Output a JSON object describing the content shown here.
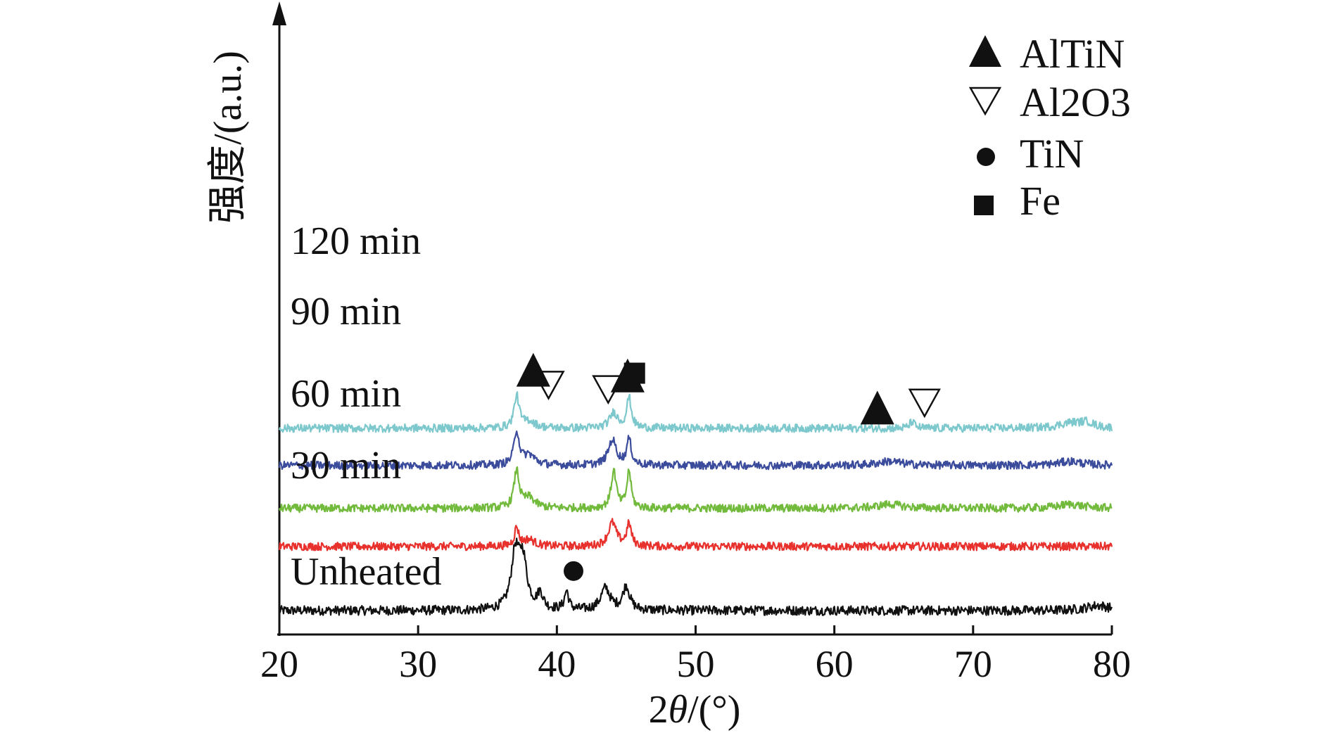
{
  "chart_data": {
    "type": "line",
    "title": "",
    "xlabel_prefix": "2",
    "xlabel_theta": "θ",
    "xlabel_suffix": "/(°)",
    "ylabel": "强度/(a.u.)",
    "xlim": [
      20,
      80
    ],
    "x_ticks": [
      20,
      30,
      40,
      50,
      60,
      70,
      80
    ],
    "x_tick_labels": [
      "20",
      "30",
      "40",
      "50",
      "60",
      "70",
      "80"
    ],
    "y_units": "a.u. (stacked offset, no ticks)",
    "series": [
      {
        "name": "Unheated",
        "color": "#111111",
        "baseline": 0.0,
        "noise": 0.014,
        "peaks": [
          {
            "x": 37.0,
            "h": 0.16,
            "w": 0.35
          },
          {
            "x": 37.55,
            "h": 0.14,
            "w": 0.35
          },
          {
            "x": 38.8,
            "h": 0.045,
            "w": 0.25
          },
          {
            "x": 40.7,
            "h": 0.055,
            "w": 0.18
          },
          {
            "x": 43.5,
            "h": 0.065,
            "w": 0.4
          },
          {
            "x": 45.0,
            "h": 0.07,
            "w": 0.3
          },
          {
            "x": 79.0,
            "h": 0.015,
            "w": 1.0
          }
        ]
      },
      {
        "name": "30 min",
        "color": "#e8302c",
        "baseline": 0.19,
        "noise": 0.012,
        "peaks": [
          {
            "x": 37.1,
            "h": 0.055,
            "w": 0.18
          },
          {
            "x": 38.0,
            "h": 0.02,
            "w": 0.5
          },
          {
            "x": 44.0,
            "h": 0.07,
            "w": 0.35
          },
          {
            "x": 45.2,
            "h": 0.065,
            "w": 0.2
          }
        ]
      },
      {
        "name": "60 min",
        "color": "#72ba3c",
        "baseline": 0.303,
        "noise": 0.012,
        "peaks": [
          {
            "x": 37.1,
            "h": 0.11,
            "w": 0.22
          },
          {
            "x": 38.0,
            "h": 0.03,
            "w": 0.5
          },
          {
            "x": 44.1,
            "h": 0.11,
            "w": 0.22
          },
          {
            "x": 45.2,
            "h": 0.11,
            "w": 0.18
          },
          {
            "x": 64.0,
            "h": 0.012,
            "w": 1.0
          },
          {
            "x": 77.0,
            "h": 0.012,
            "w": 1.0
          }
        ]
      },
      {
        "name": "90 min",
        "color": "#3c4c9c",
        "baseline": 0.43,
        "noise": 0.012,
        "peaks": [
          {
            "x": 37.1,
            "h": 0.1,
            "w": 0.22
          },
          {
            "x": 38.0,
            "h": 0.03,
            "w": 0.5
          },
          {
            "x": 44.0,
            "h": 0.075,
            "w": 0.35
          },
          {
            "x": 45.2,
            "h": 0.075,
            "w": 0.2
          },
          {
            "x": 64.0,
            "h": 0.012,
            "w": 1.0
          },
          {
            "x": 77.0,
            "h": 0.012,
            "w": 1.0
          }
        ]
      },
      {
        "name": "120 min",
        "color": "#7cc8cc",
        "baseline": 0.54,
        "noise": 0.012,
        "peaks": [
          {
            "x": 37.1,
            "h": 0.095,
            "w": 0.22
          },
          {
            "x": 38.0,
            "h": 0.02,
            "w": 0.5
          },
          {
            "x": 44.1,
            "h": 0.045,
            "w": 0.35
          },
          {
            "x": 45.2,
            "h": 0.09,
            "w": 0.2
          },
          {
            "x": 65.6,
            "h": 0.02,
            "w": 0.2
          },
          {
            "x": 77.0,
            "h": 0.015,
            "w": 1.0
          },
          {
            "x": 78.2,
            "h": 0.015,
            "w": 0.6
          }
        ]
      }
    ],
    "markers": [
      {
        "type": "triangle-up",
        "x": 38.3,
        "y": 0.705
      },
      {
        "type": "triangle-down",
        "x": 39.4,
        "y": 0.668
      },
      {
        "type": "triangle-down",
        "x": 43.7,
        "y": 0.655
      },
      {
        "type": "triangle-up",
        "x": 45.1,
        "y": 0.688
      },
      {
        "type": "square",
        "x": 45.6,
        "y": 0.703
      },
      {
        "type": "triangle-up",
        "x": 63.1,
        "y": 0.593
      },
      {
        "type": "triangle-down",
        "x": 66.5,
        "y": 0.615
      },
      {
        "type": "circle",
        "x": 41.2,
        "y": 0.117
      }
    ],
    "legend": {
      "position": "top-right",
      "entries": [
        {
          "symbol": "triangle-up",
          "label": "AlTiN"
        },
        {
          "symbol": "triangle-down",
          "label": "Al2O3"
        },
        {
          "symbol": "circle",
          "label": "TiN"
        },
        {
          "symbol": "square",
          "label": "Fe"
        }
      ]
    }
  }
}
